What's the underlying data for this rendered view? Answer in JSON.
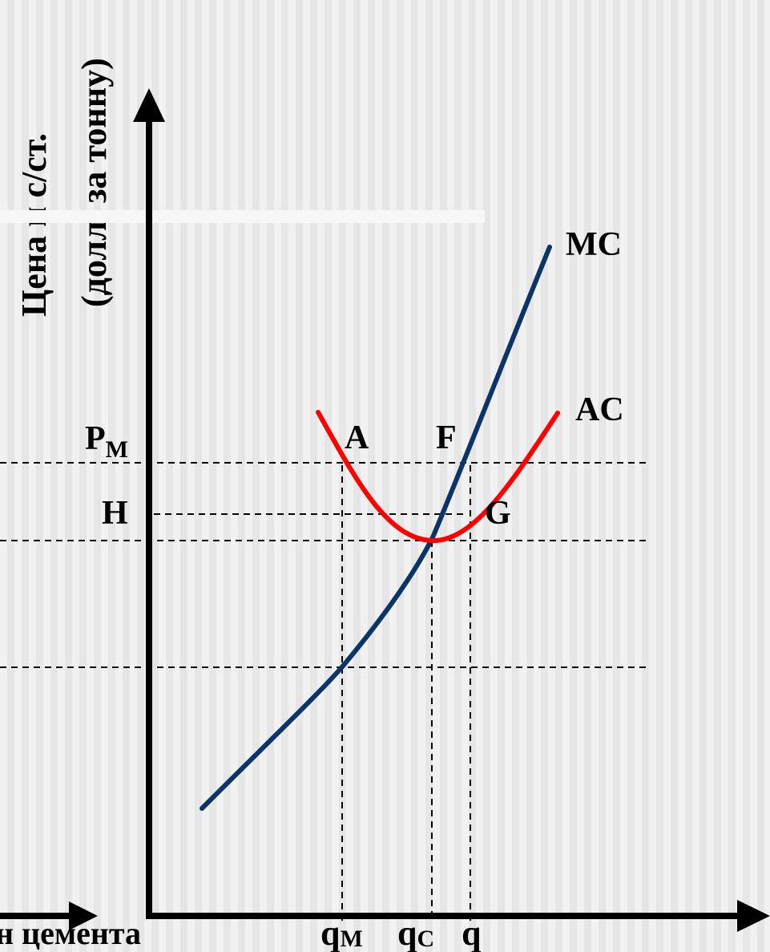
{
  "y_axis": {
    "line1": "Цена и с/ст.",
    "line2": "(долл. за тонну)"
  },
  "x_axis": {
    "label_fragment": "н цемента"
  },
  "curves": {
    "mc_label": "MC",
    "ac_label": "AC",
    "mc_color": "#0b3566",
    "ac_color": "#ff0000"
  },
  "price_labels": {
    "pm": "P",
    "pm_sub": "M",
    "h": "H"
  },
  "points": {
    "a": "A",
    "f": "F",
    "g": "G"
  },
  "quantity_labels": {
    "qm": "q",
    "qm_sub": "M",
    "qc": "q",
    "qc_sub": "C",
    "q": "q"
  }
}
